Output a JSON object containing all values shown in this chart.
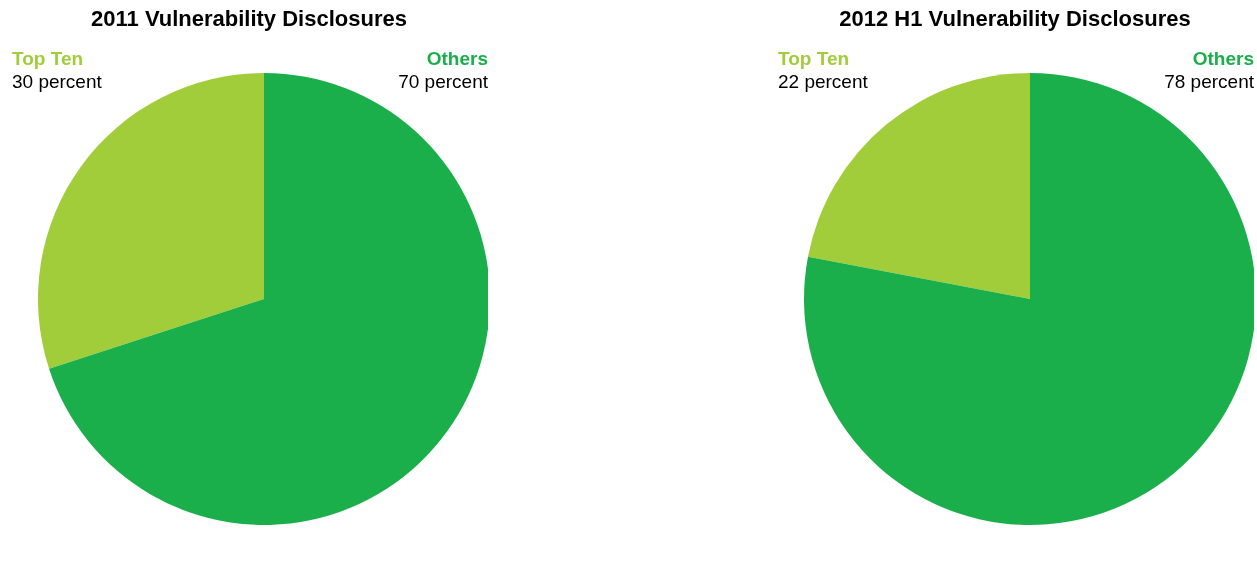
{
  "chart_data": [
    {
      "type": "pie",
      "title": "2011 Vulnerability Disclosures",
      "categories": [
        "Top Ten",
        "Others"
      ],
      "values": [
        30,
        70
      ],
      "colors": [
        "#a2cd3a",
        "#1aaf4b"
      ],
      "value_labels": [
        "30 percent",
        "70 percent"
      ]
    },
    {
      "type": "pie",
      "title": "2012 H1 Vulnerability Disclosures",
      "categories": [
        "Top Ten",
        "Others"
      ],
      "values": [
        22,
        78
      ],
      "colors": [
        "#a2cd3a",
        "#1aaf4b"
      ],
      "value_labels": [
        "22 percent",
        "78 percent"
      ]
    }
  ]
}
